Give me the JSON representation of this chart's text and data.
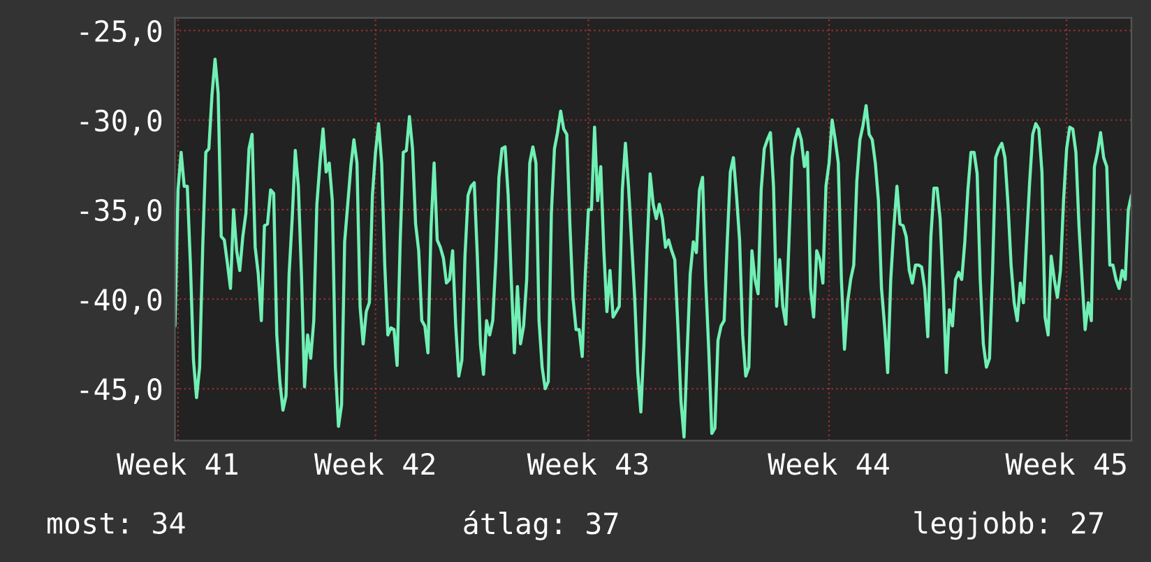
{
  "chart_data": {
    "type": "line",
    "categories": [
      null,
      "Week 41",
      null,
      null,
      null,
      null,
      null,
      null,
      null,
      null,
      null,
      null,
      null,
      null,
      null,
      null,
      null,
      null,
      null,
      null,
      null,
      null,
      null,
      null,
      null,
      null,
      null,
      null,
      null,
      null,
      null,
      null,
      null,
      null,
      null,
      null,
      null,
      null,
      null,
      null,
      null,
      null,
      null,
      null,
      null,
      null,
      null,
      null,
      null,
      null,
      null,
      null,
      null,
      null,
      null,
      null,
      null,
      null,
      null,
      null,
      null,
      null,
      null,
      null,
      null,
      "Week 42",
      null,
      null,
      null,
      null,
      null,
      null,
      null,
      null,
      null,
      null,
      null,
      null,
      null,
      null,
      null,
      null,
      null,
      null,
      null,
      null,
      null,
      null,
      null,
      null,
      null,
      null,
      null,
      null,
      null,
      null,
      null,
      null,
      null,
      null,
      null,
      null,
      null,
      null,
      null,
      null,
      null,
      null,
      null,
      null,
      null,
      null,
      null,
      null,
      null,
      null,
      null,
      null,
      null,
      null,
      null,
      null,
      null,
      null,
      null,
      null,
      null,
      null,
      null,
      null,
      null,
      null,
      null,
      null,
      "Week 43",
      null,
      null,
      null,
      null,
      null,
      null,
      null,
      null,
      null,
      null,
      null,
      null,
      null,
      null,
      null,
      null,
      null,
      null,
      null,
      null,
      null,
      null,
      null,
      null,
      null,
      null,
      null,
      null,
      null,
      null,
      null,
      null,
      null,
      null,
      null,
      null,
      null,
      null,
      null,
      null,
      null,
      null,
      null,
      null,
      null,
      null,
      null,
      null,
      null,
      null,
      null,
      null,
      null,
      null,
      null,
      null,
      null,
      null,
      null,
      null,
      null,
      null,
      null,
      null,
      null,
      null,
      null,
      null,
      null,
      null,
      null,
      null,
      null,
      null,
      null,
      null,
      null,
      "Week 44",
      null,
      null,
      null,
      null,
      null,
      null,
      null,
      null,
      null,
      null,
      null,
      null,
      null,
      null,
      null,
      null,
      null,
      null,
      null,
      null,
      null,
      null,
      null,
      null,
      null,
      null,
      null,
      null,
      null,
      null,
      null,
      null,
      null,
      null,
      null,
      null,
      null,
      null,
      null,
      null,
      null,
      null,
      null,
      null,
      null,
      null,
      null,
      null,
      null,
      null,
      null,
      null,
      null,
      null,
      null,
      null,
      null,
      null,
      null,
      null,
      null,
      null,
      null,
      null,
      null,
      null,
      null,
      null,
      null,
      null,
      null,
      null,
      null,
      null,
      null,
      null,
      "Week 45",
      null,
      null,
      null,
      null,
      null,
      null,
      null,
      null,
      null,
      null,
      null,
      null,
      null,
      null,
      null,
      null,
      null,
      null,
      null,
      null,
      null
    ],
    "series": [
      {
        "color": "#70f0b4",
        "values": [
          -41.5,
          -33.9,
          -31.8,
          -33.7,
          -33.7,
          -38.0,
          -43.4,
          -45.5,
          -43.8,
          -37.1,
          -31.8,
          -31.6,
          -28.6,
          -26.6,
          -28.5,
          -36.5,
          -36.7,
          -38.0,
          -39.4,
          -35.0,
          -37.3,
          -38.4,
          -36.5,
          -35.2,
          -31.6,
          -30.8,
          -37.1,
          -38.6,
          -41.2,
          -35.9,
          -35.8,
          -33.9,
          -34.1,
          -42.0,
          -44.6,
          -46.2,
          -45.4,
          -38.6,
          -35.5,
          -31.7,
          -33.7,
          -38.6,
          -44.9,
          -42.0,
          -43.3,
          -41.2,
          -34.7,
          -32.4,
          -30.5,
          -32.9,
          -32.4,
          -34.5,
          -43.8,
          -47.1,
          -45.9,
          -36.8,
          -34.7,
          -32.6,
          -31.1,
          -32.4,
          -40.4,
          -42.5,
          -40.7,
          -40.2,
          -34.2,
          -31.8,
          -30.2,
          -32.4,
          -38.1,
          -42.0,
          -41.6,
          -41.7,
          -43.7,
          -36.8,
          -31.8,
          -31.7,
          -29.8,
          -31.6,
          -35.8,
          -37.3,
          -41.2,
          -41.5,
          -43.0,
          -36.0,
          -32.4,
          -36.7,
          -37.1,
          -37.7,
          -39.1,
          -38.9,
          -37.3,
          -41.5,
          -44.3,
          -43.4,
          -37.6,
          -34.2,
          -33.7,
          -33.5,
          -37.6,
          -42.5,
          -44.2,
          -41.2,
          -42.0,
          -41.2,
          -37.8,
          -33.2,
          -31.6,
          -31.5,
          -34.2,
          -38.9,
          -43.0,
          -39.3,
          -42.5,
          -41.5,
          -38.9,
          -32.4,
          -31.5,
          -32.4,
          -41.2,
          -43.8,
          -45.0,
          -44.6,
          -35.2,
          -31.6,
          -30.7,
          -29.5,
          -30.5,
          -30.8,
          -35.8,
          -39.9,
          -41.7,
          -41.7,
          -43.2,
          -38.6,
          -35.0,
          -35.0,
          -30.4,
          -34.5,
          -32.6,
          -37.3,
          -40.7,
          -38.4,
          -41.0,
          -40.7,
          -40.4,
          -33.9,
          -31.3,
          -33.7,
          -36.8,
          -39.9,
          -44.1,
          -46.3,
          -42.5,
          -37.3,
          -33.0,
          -34.7,
          -35.5,
          -34.7,
          -35.5,
          -37.1,
          -36.7,
          -37.3,
          -37.8,
          -41.5,
          -45.7,
          -47.7,
          -43.0,
          -38.6,
          -36.8,
          -37.4,
          -33.9,
          -33.2,
          -38.9,
          -42.8,
          -47.5,
          -47.2,
          -42.3,
          -41.5,
          -41.2,
          -36.8,
          -32.9,
          -32.1,
          -34.2,
          -36.7,
          -42.0,
          -44.3,
          -43.8,
          -37.3,
          -38.9,
          -39.7,
          -33.9,
          -31.6,
          -31.1,
          -30.7,
          -33.7,
          -40.4,
          -37.8,
          -40.4,
          -41.4,
          -36.8,
          -32.1,
          -31.1,
          -30.5,
          -31.1,
          -32.6,
          -31.8,
          -39.4,
          -41.0,
          -37.3,
          -37.8,
          -39.1,
          -33.7,
          -32.4,
          -30.0,
          -31.1,
          -32.4,
          -38.9,
          -42.8,
          -40.2,
          -38.9,
          -38.1,
          -33.4,
          -31.1,
          -30.3,
          -29.2,
          -30.8,
          -31.1,
          -32.4,
          -34.5,
          -39.4,
          -41.5,
          -44.1,
          -38.9,
          -36.0,
          -33.7,
          -35.8,
          -35.9,
          -36.5,
          -38.4,
          -39.1,
          -38.1,
          -38.1,
          -38.2,
          -39.4,
          -42.1,
          -36.5,
          -33.8,
          -33.8,
          -35.5,
          -39.4,
          -44.1,
          -40.6,
          -41.5,
          -38.9,
          -38.5,
          -38.9,
          -36.8,
          -33.9,
          -31.8,
          -31.8,
          -33.0,
          -38.9,
          -42.5,
          -43.8,
          -43.3,
          -38.4,
          -32.1,
          -31.6,
          -31.3,
          -32.1,
          -34.7,
          -38.1,
          -40.2,
          -41.2,
          -39.1,
          -40.2,
          -36.8,
          -33.5,
          -30.8,
          -30.2,
          -30.5,
          -32.9,
          -41.0,
          -42.0,
          -37.6,
          -38.9,
          -39.9,
          -38.4,
          -34.5,
          -31.6,
          -30.4,
          -30.5,
          -31.8,
          -35.9,
          -38.9,
          -41.7,
          -40.2,
          -41.2,
          -32.6,
          -31.8,
          -30.7,
          -32.1,
          -32.6,
          -38.1,
          -38.1,
          -38.9,
          -39.4,
          -38.4,
          -38.9,
          -35.0,
          -34.2
        ]
      }
    ],
    "ylim": [
      -47.9,
      -24.3
    ],
    "yticks": [
      {
        "value": -25,
        "label": "-25,0"
      },
      {
        "value": -30,
        "label": "-30,0"
      },
      {
        "value": -35,
        "label": "-35,0"
      },
      {
        "value": -40,
        "label": "-40,0"
      },
      {
        "value": -45,
        "label": "-45,0"
      }
    ],
    "grid": true,
    "annotations": [
      "most: 34",
      "átlag: 37",
      "legjobb: 27"
    ]
  }
}
